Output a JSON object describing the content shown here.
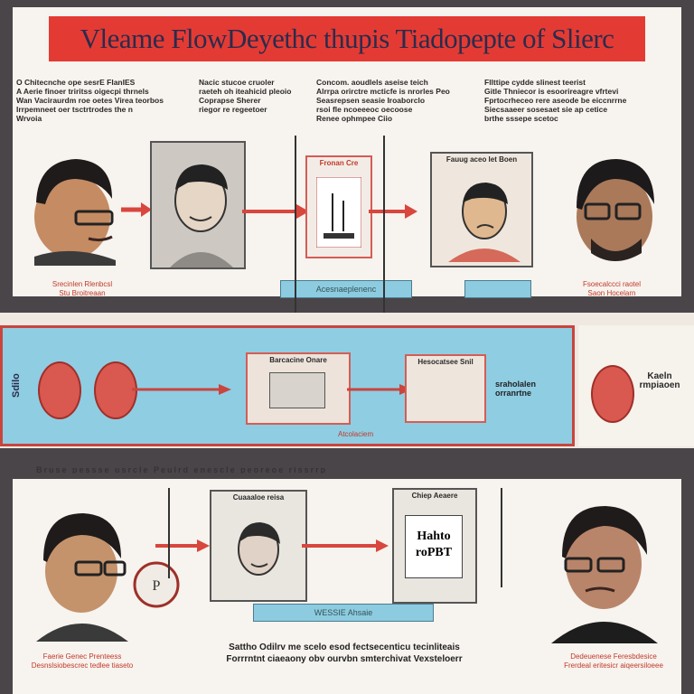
{
  "title": "Vleame FlowDeyethc thupis Tiadopepte of Slierc",
  "top": {
    "captions": [
      "O Chitecnche ope sesrE FIanIES\nA Aerie finoer triritss oigecpi thrnels\nWan Vaciraurdm roe oetes Virea teorbos\nIrrpemneet oer tsctrtrodes the n\nWrvoia",
      "Nacic stucoe cruoler\nraeteh oh iteahicid pleoio\nCoprapse Sherer\nriegor re regeetoer",
      "Concom. aoudlels aseise teich\nAlrrpa orirctre mcticfe is nrorles Peo\nSeasrepsen seasie Iroaborclo\nrsoi fle ncoeeeoc oecoose\nRenee ophmpee Ciio",
      "Fllttipe cydde slinest teerist\nGitle Thniecor is esoorireagre vfrtevi\nFprtocrheceo rere aseode be eiccnrrne\nSiecsaaeer sosesaet sie ap cetice\nbrthe sssepe scetoc"
    ],
    "frame_labels": [
      "Fronan Cre",
      "Fauug aceo Iet Boen"
    ],
    "faces_captions": [
      "Srecinlen Rlenbcsl\nStu Broitreaan",
      "Fsoecalccci raotel\nSaon Hocelarn"
    ],
    "bluebar_labels": [
      "Acesnaeplenenc",
      ""
    ]
  },
  "middle": {
    "left_label": "Sdilo",
    "frame_labels": [
      "Barcacine Onare",
      "Hesocatsee Snil"
    ],
    "text_right": "sraholalen\norranrtne",
    "corner_label": "Kaeln\nrmpiaoen",
    "small_caption": "Atcolaciem"
  },
  "divider": "Bruse pessse usrcle Peulrd enescle peoreoe rissrrp",
  "bottom": {
    "frame_labels": [
      "Cuaaaloe reisa",
      "Chiep Aeaere"
    ],
    "frame_text": "Hahto\nroPBT",
    "bluebar": "WESSIE Ahsaie",
    "caption": "Sattho Odilrv me scelo esod fectsecenticu tecinliteais\nForrrntnt ciaeaony obv ourvbn smterchivat Vexsteloerr",
    "side_captions": [
      "Faerie Genec Prenteess\nDesnslsiobescrec tedlee tiaseto",
      "Dedeuenese Feresbdesice\nFrerdeal eritesicr aiqeersiloeee"
    ]
  },
  "colors": {
    "accent_red": "#e33b34",
    "panel_blue": "#8fcde3",
    "paper": "#f7f3ee",
    "frame": "#555555"
  }
}
